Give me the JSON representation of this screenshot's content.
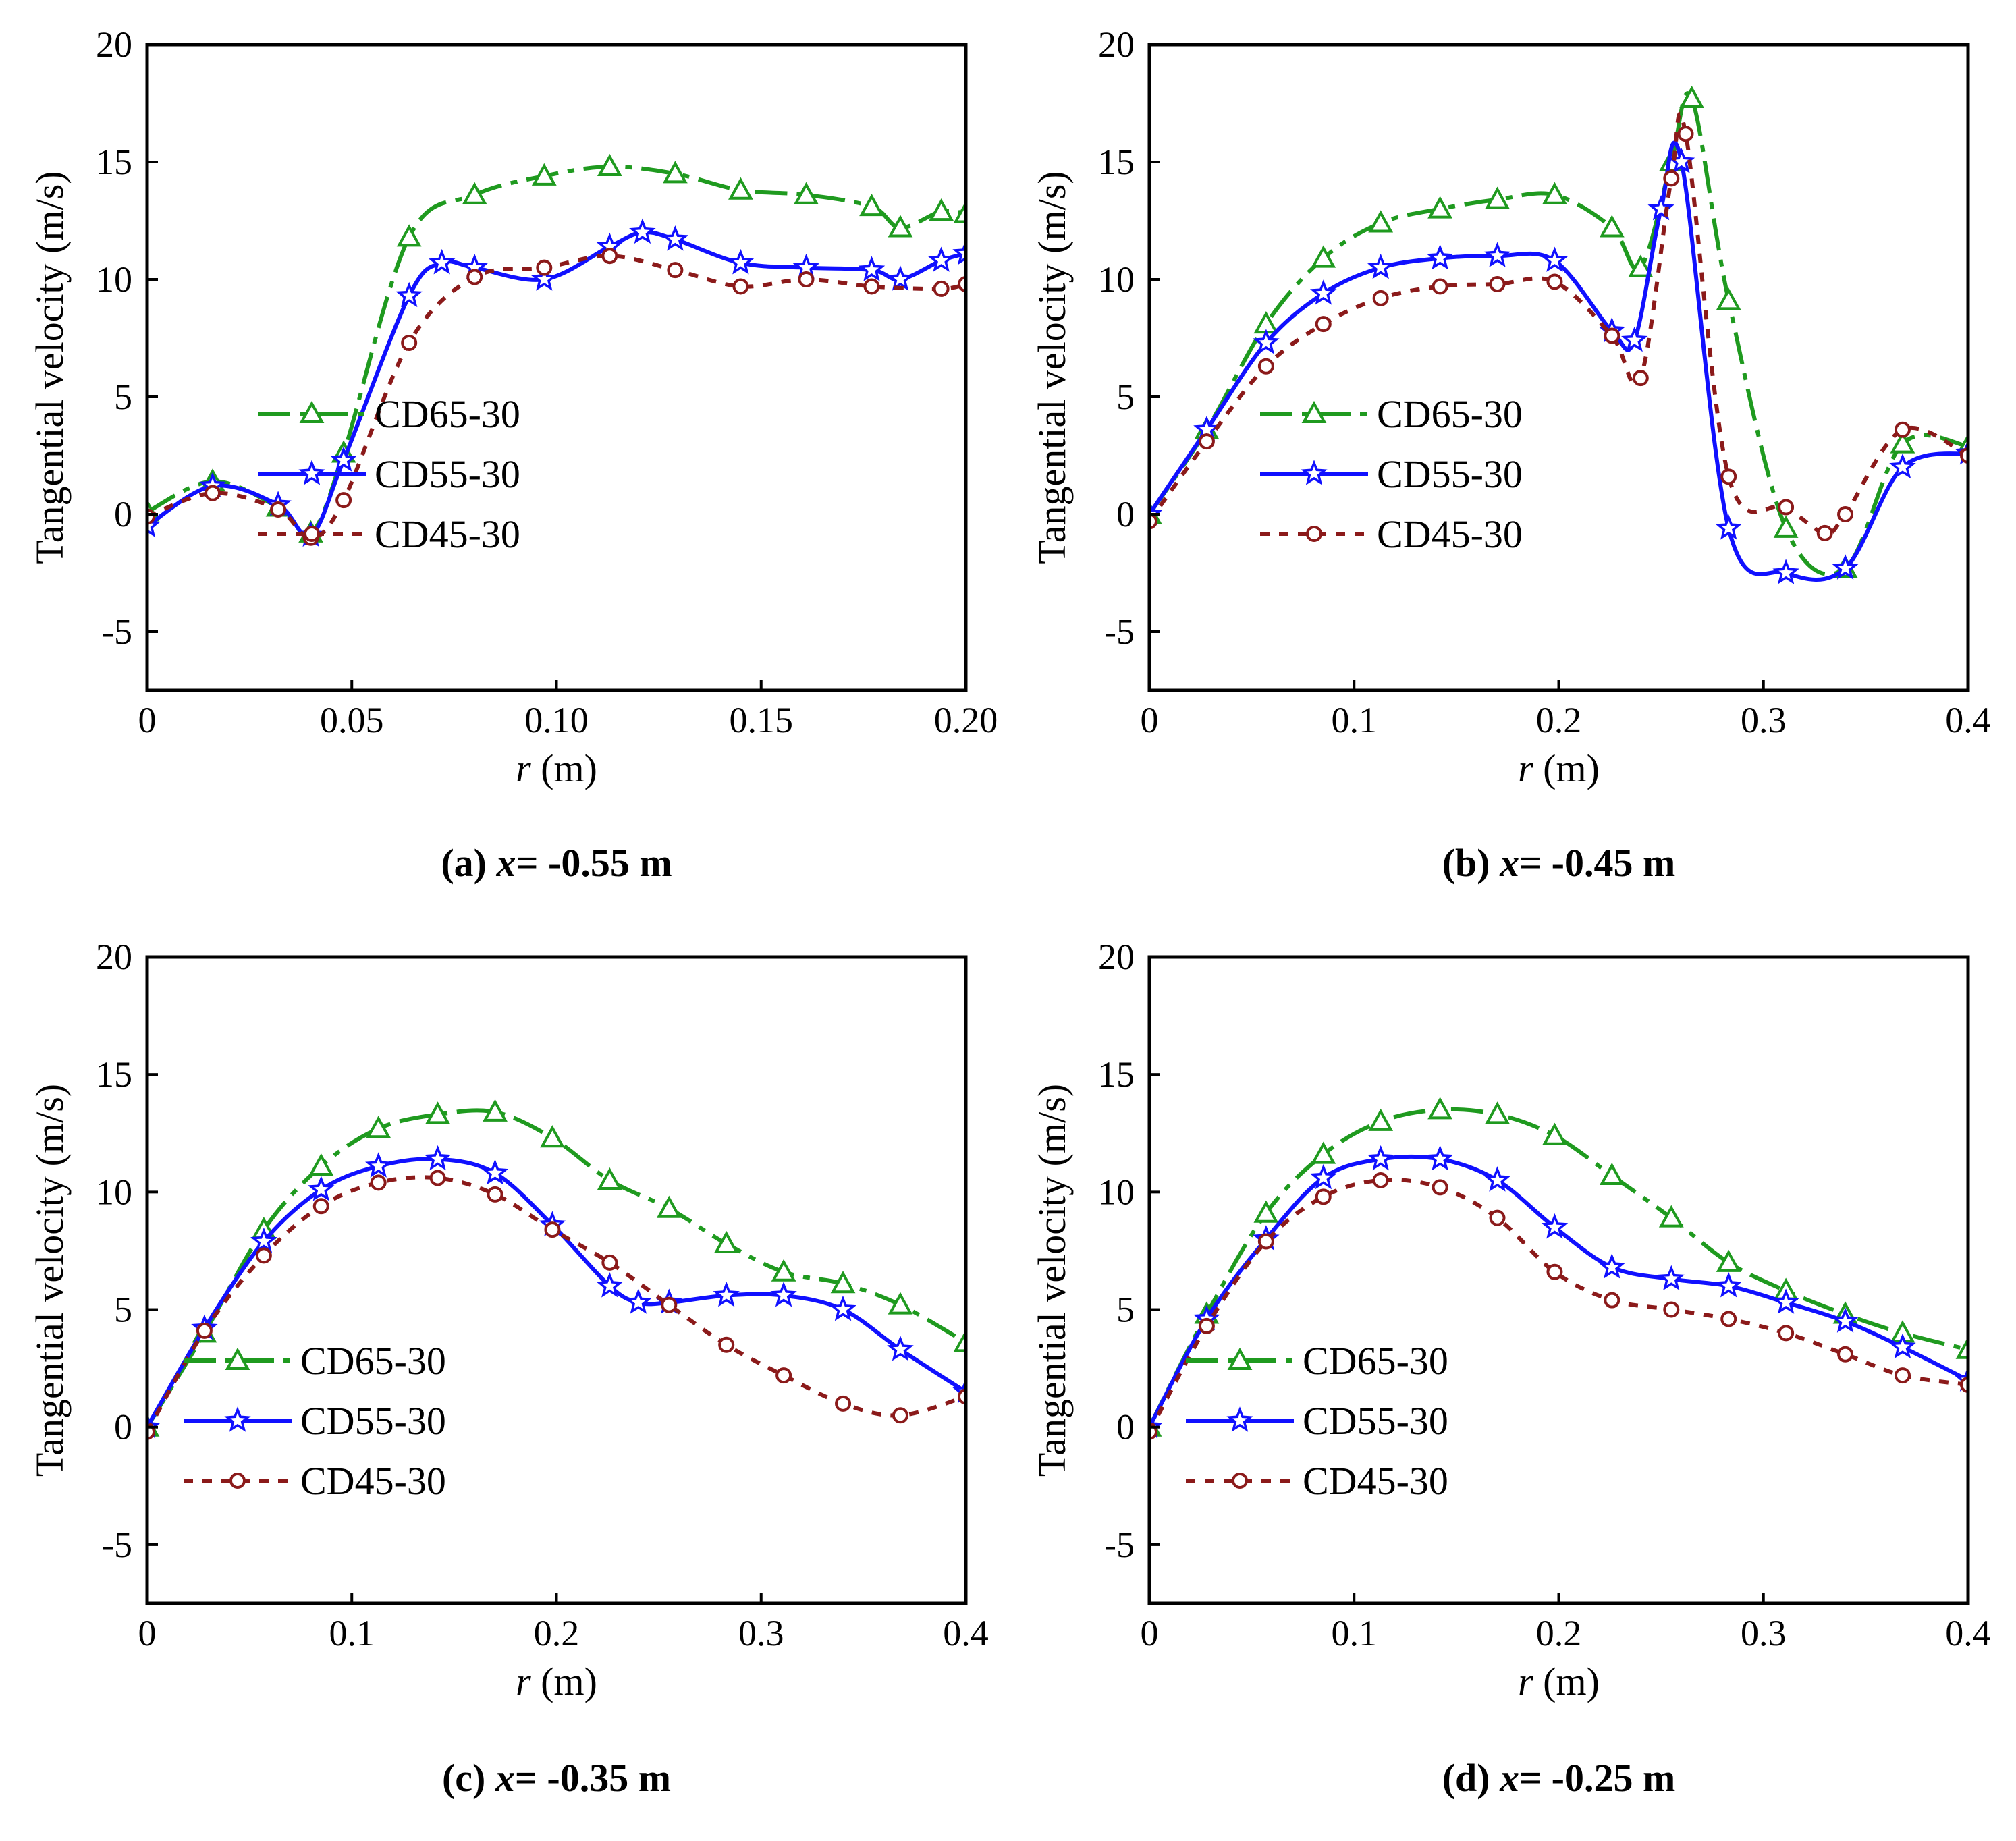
{
  "chart_data": [
    {
      "type": "line",
      "panel": "a",
      "caption": {
        "prefix": "(a) ",
        "var": "x",
        "suffix": "= -0.55 m"
      },
      "xlabel": {
        "var": "r",
        "unit": " (m)"
      },
      "ylabel": "Tangential velocity (m/s)",
      "xlim": [
        0,
        0.2
      ],
      "ylim": [
        -7.5,
        20
      ],
      "xticks": [
        0,
        0.05,
        0.1,
        0.15,
        0.2
      ],
      "xtick_labels": [
        "0",
        "0.05",
        "0.10",
        "0.15",
        "0.20"
      ],
      "yticks": [
        -5,
        0,
        5,
        10,
        15,
        20
      ],
      "ytick_labels": [
        "-5",
        "0",
        "5",
        "10",
        "15",
        "20"
      ],
      "legend_position": "middle-left",
      "series": [
        {
          "name": "CD65-30",
          "x": [
            0,
            0.016,
            0.032,
            0.04,
            0.048,
            0.064,
            0.08,
            0.097,
            0.113,
            0.129,
            0.145,
            0.161,
            0.177,
            0.184,
            0.194,
            0.2
          ],
          "y": [
            0.1,
            1.4,
            0.3,
            -0.8,
            2.6,
            11.8,
            13.6,
            14.4,
            14.8,
            14.5,
            13.8,
            13.6,
            13.1,
            12.2,
            12.9,
            12.8
          ]
        },
        {
          "name": "CD55-30",
          "x": [
            0,
            0.016,
            0.032,
            0.04,
            0.048,
            0.064,
            0.072,
            0.08,
            0.097,
            0.113,
            0.121,
            0.129,
            0.145,
            0.161,
            0.177,
            0.184,
            0.194,
            0.2
          ],
          "y": [
            -0.5,
            1.2,
            0.4,
            -0.9,
            2.3,
            9.3,
            10.7,
            10.5,
            10,
            11.4,
            12,
            11.7,
            10.7,
            10.5,
            10.4,
            10,
            10.8,
            11.1
          ]
        },
        {
          "name": "CD45-30",
          "x": [
            0,
            0.016,
            0.032,
            0.04,
            0.048,
            0.064,
            0.08,
            0.097,
            0.113,
            0.129,
            0.145,
            0.161,
            0.177,
            0.194,
            0.2
          ],
          "y": [
            -0.1,
            0.9,
            0.2,
            -1,
            0.6,
            7.3,
            10.1,
            10.5,
            11,
            10.4,
            9.7,
            10,
            9.7,
            9.6,
            9.8
          ]
        }
      ]
    },
    {
      "type": "line",
      "panel": "b",
      "caption": {
        "prefix": "(b) ",
        "var": "x",
        "suffix": "= -0.45 m"
      },
      "xlabel": {
        "var": "r",
        "unit": " (m)"
      },
      "ylabel": "Tangential velocity (m/s)",
      "xlim": [
        0,
        0.4
      ],
      "ylim": [
        -7.5,
        20
      ],
      "xticks": [
        0,
        0.1,
        0.2,
        0.3,
        0.4
      ],
      "xtick_labels": [
        "0",
        "0.1",
        "0.2",
        "0.3",
        "0.4"
      ],
      "yticks": [
        -5,
        0,
        5,
        10,
        15,
        20
      ],
      "ytick_labels": [
        "-5",
        "0",
        "5",
        "10",
        "15",
        "20"
      ],
      "legend_position": "middle-left",
      "series": [
        {
          "name": "CD65-30",
          "x": [
            0,
            0.028,
            0.057,
            0.085,
            0.113,
            0.142,
            0.17,
            0.198,
            0.226,
            0.24,
            0.255,
            0.265,
            0.283,
            0.311,
            0.34,
            0.368,
            0.4
          ],
          "y": [
            0,
            3.6,
            8.1,
            10.9,
            12.4,
            13,
            13.4,
            13.6,
            12.2,
            10.5,
            15,
            17.7,
            9.1,
            -0.6,
            -2.3,
            3,
            2.9
          ]
        },
        {
          "name": "CD55-30",
          "x": [
            0,
            0.028,
            0.057,
            0.085,
            0.113,
            0.142,
            0.17,
            0.198,
            0.226,
            0.237,
            0.25,
            0.26,
            0.283,
            0.311,
            0.34,
            0.368,
            0.4
          ],
          "y": [
            0,
            3.6,
            7.3,
            9.4,
            10.5,
            10.9,
            11,
            10.8,
            7.8,
            7.4,
            13,
            15,
            -0.6,
            -2.5,
            -2.3,
            2,
            2.6
          ]
        },
        {
          "name": "CD45-30",
          "x": [
            0,
            0.028,
            0.057,
            0.085,
            0.113,
            0.142,
            0.17,
            0.198,
            0.226,
            0.24,
            0.255,
            0.262,
            0.283,
            0.311,
            0.33,
            0.34,
            0.368,
            0.4
          ],
          "y": [
            -0.3,
            3.1,
            6.3,
            8.1,
            9.2,
            9.7,
            9.8,
            9.9,
            7.6,
            5.8,
            14.3,
            16.2,
            1.6,
            0.3,
            -0.8,
            0,
            3.6,
            2.5
          ]
        }
      ]
    },
    {
      "type": "line",
      "panel": "c",
      "caption": {
        "prefix": "(c) ",
        "var": "x",
        "suffix": "= -0.35 m"
      },
      "xlabel": {
        "var": "r",
        "unit": " (m)"
      },
      "ylabel": "Tangential velocity (m/s)",
      "xlim": [
        0,
        0.4
      ],
      "ylim": [
        -7.5,
        20
      ],
      "xticks": [
        0,
        0.1,
        0.2,
        0.3,
        0.4
      ],
      "xtick_labels": [
        "0",
        "0.1",
        "0.2",
        "0.3",
        "0.4"
      ],
      "yticks": [
        -5,
        0,
        5,
        10,
        15,
        20
      ],
      "ytick_labels": [
        "-5",
        "0",
        "5",
        "10",
        "15",
        "20"
      ],
      "legend_position": "lower-left",
      "series": [
        {
          "name": "CD65-30",
          "x": [
            0,
            0.028,
            0.057,
            0.085,
            0.113,
            0.142,
            0.17,
            0.198,
            0.226,
            0.255,
            0.283,
            0.311,
            0.34,
            0.368,
            0.4
          ],
          "y": [
            0,
            4,
            8.4,
            11.1,
            12.7,
            13.3,
            13.4,
            12.3,
            10.5,
            9.3,
            7.8,
            6.6,
            6.1,
            5.2,
            3.6
          ]
        },
        {
          "name": "CD55-30",
          "x": [
            0,
            0.028,
            0.057,
            0.085,
            0.113,
            0.142,
            0.17,
            0.198,
            0.226,
            0.24,
            0.255,
            0.283,
            0.311,
            0.34,
            0.368,
            0.4
          ],
          "y": [
            0,
            4.2,
            7.9,
            10.1,
            11.1,
            11.4,
            10.8,
            8.6,
            6,
            5.3,
            5.3,
            5.6,
            5.6,
            5,
            3.3,
            1.5
          ]
        },
        {
          "name": "CD45-30",
          "x": [
            0,
            0.028,
            0.057,
            0.085,
            0.113,
            0.142,
            0.17,
            0.198,
            0.226,
            0.255,
            0.283,
            0.311,
            0.34,
            0.368,
            0.4
          ],
          "y": [
            -0.2,
            4.1,
            7.3,
            9.4,
            10.4,
            10.6,
            9.9,
            8.4,
            7,
            5.2,
            3.5,
            2.2,
            1,
            0.5,
            1.3
          ]
        }
      ]
    },
    {
      "type": "line",
      "panel": "d",
      "caption": {
        "prefix": "(d) ",
        "var": "x",
        "suffix": "= -0.25 m"
      },
      "xlabel": {
        "var": "r",
        "unit": " (m)"
      },
      "ylabel": "Tangential velocity (m/s)",
      "xlim": [
        0,
        0.4
      ],
      "ylim": [
        -7.5,
        20
      ],
      "xticks": [
        0,
        0.1,
        0.2,
        0.3,
        0.4
      ],
      "xtick_labels": [
        "0",
        "0.1",
        "0.2",
        "0.3",
        "0.4"
      ],
      "yticks": [
        -5,
        0,
        5,
        10,
        15,
        20
      ],
      "ytick_labels": [
        "-5",
        "0",
        "5",
        "10",
        "15",
        "20"
      ],
      "legend_position": "lower-left",
      "series": [
        {
          "name": "CD65-30",
          "x": [
            0,
            0.028,
            0.057,
            0.085,
            0.113,
            0.142,
            0.17,
            0.198,
            0.226,
            0.255,
            0.283,
            0.311,
            0.34,
            0.368,
            0.4
          ],
          "y": [
            0,
            4.8,
            9.1,
            11.6,
            13,
            13.5,
            13.3,
            12.4,
            10.7,
            8.9,
            7,
            5.8,
            4.8,
            4,
            3.3
          ]
        },
        {
          "name": "CD55-30",
          "x": [
            0,
            0.028,
            0.057,
            0.085,
            0.113,
            0.142,
            0.17,
            0.198,
            0.226,
            0.255,
            0.283,
            0.311,
            0.34,
            0.368,
            0.4
          ],
          "y": [
            0,
            4.6,
            8,
            10.6,
            11.4,
            11.4,
            10.5,
            8.5,
            6.8,
            6.3,
            6,
            5.3,
            4.5,
            3.4,
            2
          ]
        },
        {
          "name": "CD45-30",
          "x": [
            0,
            0.028,
            0.057,
            0.085,
            0.113,
            0.142,
            0.17,
            0.198,
            0.226,
            0.255,
            0.283,
            0.311,
            0.34,
            0.368,
            0.4
          ],
          "y": [
            -0.2,
            4.3,
            7.9,
            9.8,
            10.5,
            10.2,
            8.9,
            6.6,
            5.4,
            5,
            4.6,
            4,
            3.1,
            2.2,
            1.8
          ]
        }
      ]
    }
  ],
  "styles": {
    "CD65-30": {
      "color": "#1f9a1f",
      "dash": "48 14 10 14",
      "marker": "triangle"
    },
    "CD55-30": {
      "color": "#1010ff",
      "dash": "",
      "marker": "star"
    },
    "CD45-30": {
      "color": "#8b1a1a",
      "dash": "14 14",
      "marker": "circle"
    }
  }
}
